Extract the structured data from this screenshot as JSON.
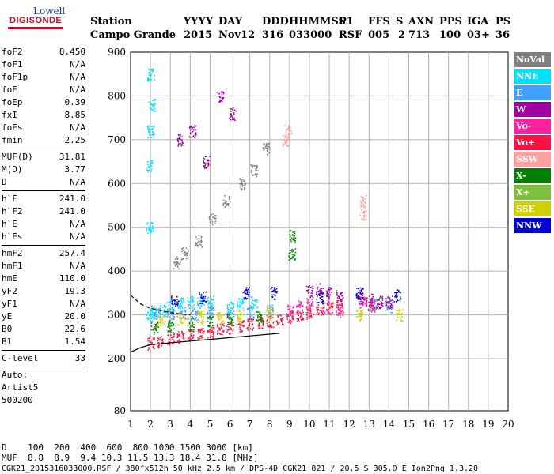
{
  "logo": {
    "line1": "Lowell",
    "line2": "DIGISONDE"
  },
  "header": {
    "labels": [
      "Station",
      "YYYY",
      "DAY",
      "DDD",
      "HHMMSS",
      "P1",
      "FFS",
      "S",
      "AXN",
      "PPS",
      "IGA",
      "PS"
    ],
    "values": [
      "Campo Grande",
      "2015",
      "Nov12",
      "316",
      "033000",
      "RSF",
      "005",
      "2",
      "713",
      "100",
      "03+",
      "36"
    ]
  },
  "params": {
    "group1": [
      {
        "label": "foF2",
        "value": "8.450"
      },
      {
        "label": "foF1",
        "value": "N/A"
      },
      {
        "label": "foF1p",
        "value": "N/A"
      },
      {
        "label": "foE",
        "value": "N/A"
      },
      {
        "label": "foEp",
        "value": "0.39"
      },
      {
        "label": "fxI",
        "value": "8.85"
      },
      {
        "label": "foEs",
        "value": "N/A"
      },
      {
        "label": "fmin",
        "value": "2.25"
      }
    ],
    "group2": [
      {
        "label": "MUF(D)",
        "value": "31.81"
      },
      {
        "label": "M(D)",
        "value": "3.77"
      },
      {
        "label": "D",
        "value": "N/A"
      }
    ],
    "group3": [
      {
        "label": "h`F",
        "value": "241.0"
      },
      {
        "label": "h`F2",
        "value": "241.0"
      },
      {
        "label": "h`E",
        "value": "N/A"
      },
      {
        "label": "h`Es",
        "value": "N/A"
      }
    ],
    "group4": [
      {
        "label": "hmF2",
        "value": "257.4"
      },
      {
        "label": "hmF1",
        "value": "N/A"
      },
      {
        "label": "hmE",
        "value": "110.0"
      },
      {
        "label": "yF2",
        "value": "19.3"
      },
      {
        "label": "yF1",
        "value": "N/A"
      },
      {
        "label": "yE",
        "value": "20.0"
      },
      {
        "label": "B0",
        "value": "22.6"
      },
      {
        "label": "B1",
        "value": "1.54"
      }
    ],
    "group5": [
      {
        "label": "C-level",
        "value": "33"
      }
    ],
    "notes": [
      "Auto:",
      "Artist5",
      "500200"
    ]
  },
  "legend": [
    {
      "label": "NoVal",
      "color": "#808080"
    },
    {
      "label": "NNE",
      "color": "#00e0ff"
    },
    {
      "label": "E",
      "color": "#40a0ff"
    },
    {
      "label": "W",
      "color": "#a000a0"
    },
    {
      "label": "Vo-",
      "color": "#ff20a0"
    },
    {
      "label": "Vo+",
      "color": "#ff1040"
    },
    {
      "label": "SSW",
      "color": "#ffa0a0"
    },
    {
      "label": "X-",
      "color": "#008000"
    },
    {
      "label": "X+",
      "color": "#80c040"
    },
    {
      "label": "SSE",
      "color": "#d0d000"
    },
    {
      "label": "NNW",
      "color": "#0000d0"
    }
  ],
  "footer": {
    "d_row": "D    100  200  400  600  800 1000 1500 3000 [km]",
    "muf_row": "MUF  8.8  8.9  9.4 10.3 11.5 13.3 18.4 31.8 [MHz]",
    "file_row": "CGK21_2015316033000.RSF / 380fx512h 50 kHz 2.5 km / DPS-4D CGK21 821 / 20.5 S 305.0 E Ion2Png 1.3.20"
  },
  "chart_data": {
    "type": "scatter",
    "xlabel": "",
    "ylabel": "",
    "xlim": [
      1,
      20
    ],
    "ylim": [
      80,
      900
    ],
    "xticks": [
      "1",
      "2",
      "3",
      "4",
      "5",
      "6",
      "7",
      "8",
      "9",
      "10",
      "11",
      "12",
      "13",
      "14",
      "15",
      "16",
      "17",
      "18",
      "19",
      "20"
    ],
    "yticks": [
      "80",
      "200",
      "300",
      "400",
      "500",
      "600",
      "700",
      "800",
      "900"
    ],
    "ytick_values": [
      80,
      200,
      300,
      400,
      500,
      600,
      700,
      800,
      900
    ],
    "grid": true,
    "series": [
      {
        "color": "#00e0ff",
        "points": [
          [
            1.9,
            300
          ],
          [
            1.95,
            500
          ],
          [
            2.0,
            720
          ],
          [
            2.05,
            780
          ],
          [
            2.0,
            850
          ],
          [
            1.9,
            640
          ],
          [
            2.1,
            310
          ],
          [
            2.6,
            310
          ],
          [
            3.0,
            320
          ],
          [
            3.5,
            330
          ],
          [
            4.0,
            330
          ],
          [
            4.5,
            330
          ],
          [
            5.0,
            330
          ],
          [
            6.0,
            320
          ],
          [
            6.5,
            325
          ],
          [
            7.2,
            330
          ]
        ]
      },
      {
        "color": "#40a0ff",
        "points": [
          [
            2.3,
            305
          ],
          [
            3.0,
            305
          ],
          [
            3.6,
            305
          ],
          [
            4.2,
            300
          ],
          [
            5.0,
            305
          ],
          [
            6.0,
            305
          ],
          [
            7.0,
            305
          ],
          [
            8.0,
            310
          ],
          [
            13.2,
            325
          ],
          [
            14.0,
            320
          ]
        ]
      },
      {
        "color": "#ff1040",
        "points": [
          [
            2.0,
            235
          ],
          [
            2.5,
            240
          ],
          [
            3.0,
            245
          ],
          [
            3.5,
            250
          ],
          [
            4.0,
            255
          ],
          [
            4.5,
            258
          ],
          [
            5.0,
            262
          ],
          [
            5.5,
            268
          ],
          [
            6.0,
            272
          ],
          [
            6.5,
            276
          ],
          [
            7.0,
            280
          ],
          [
            7.5,
            283
          ],
          [
            8.0,
            286
          ],
          [
            8.5,
            290
          ],
          [
            9.0,
            295
          ],
          [
            9.5,
            300
          ],
          [
            10.0,
            305
          ],
          [
            10.5,
            310
          ],
          [
            11.0,
            315
          ],
          [
            11.5,
            320
          ]
        ]
      },
      {
        "color": "#a000a0",
        "points": [
          [
            10.0,
            355
          ],
          [
            10.5,
            360
          ],
          [
            11.0,
            350
          ],
          [
            11.5,
            345
          ],
          [
            12.5,
            340
          ],
          [
            13.0,
            335
          ],
          [
            13.5,
            330
          ],
          [
            14.0,
            330
          ],
          [
            3.5,
            700
          ],
          [
            4.1,
            720
          ],
          [
            4.8,
            650
          ],
          [
            5.5,
            800
          ],
          [
            6.1,
            760
          ]
        ]
      },
      {
        "color": "#ff20a0",
        "points": [
          [
            9.0,
            310
          ],
          [
            9.5,
            320
          ],
          [
            10.0,
            325
          ],
          [
            10.8,
            320
          ],
          [
            11.5,
            310
          ],
          [
            12.7,
            330
          ],
          [
            13.1,
            320
          ]
        ]
      },
      {
        "color": "#008000",
        "points": [
          [
            2.2,
            270
          ],
          [
            3.0,
            275
          ],
          [
            4.0,
            280
          ],
          [
            5.0,
            285
          ],
          [
            6.0,
            290
          ],
          [
            7.5,
            295
          ],
          [
            9.1,
            440
          ],
          [
            9.1,
            480
          ]
        ]
      },
      {
        "color": "#d0d000",
        "points": [
          [
            2.5,
            290
          ],
          [
            3.5,
            290
          ],
          [
            4.5,
            295
          ],
          [
            5.5,
            295
          ],
          [
            6.5,
            300
          ],
          [
            8.0,
            305
          ],
          [
            12.5,
            300
          ],
          [
            14.5,
            300
          ]
        ]
      },
      {
        "color": "#0000d0",
        "points": [
          [
            3.2,
            330
          ],
          [
            4.6,
            340
          ],
          [
            6.8,
            350
          ],
          [
            8.2,
            350
          ],
          [
            10.5,
            340
          ],
          [
            12.5,
            350
          ],
          [
            14.4,
            345
          ]
        ]
      },
      {
        "color": "#ffa0a0",
        "points": [
          [
            8.8,
            700
          ],
          [
            8.9,
            720
          ],
          [
            12.7,
            530
          ],
          [
            12.7,
            560
          ]
        ]
      },
      {
        "color": "#808080",
        "points": [
          [
            3.3,
            420
          ],
          [
            3.7,
            440
          ],
          [
            4.4,
            470
          ],
          [
            5.1,
            520
          ],
          [
            5.8,
            560
          ],
          [
            6.6,
            600
          ],
          [
            7.2,
            630
          ],
          [
            7.8,
            680
          ]
        ]
      }
    ],
    "curves": [
      {
        "color": "#000000",
        "points": [
          [
            1.0,
            345
          ],
          [
            1.5,
            325
          ],
          [
            2.0,
            315
          ],
          [
            3.0,
            305
          ],
          [
            4.0,
            300
          ]
        ]
      },
      {
        "color": "#000000",
        "points": [
          [
            1.0,
            215
          ],
          [
            1.5,
            225
          ],
          [
            2.0,
            232
          ],
          [
            3.0,
            236
          ],
          [
            4.0,
            240
          ],
          [
            5.0,
            244
          ],
          [
            6.0,
            248
          ],
          [
            7.0,
            252
          ],
          [
            8.0,
            256
          ],
          [
            8.5,
            258
          ]
        ]
      }
    ]
  }
}
